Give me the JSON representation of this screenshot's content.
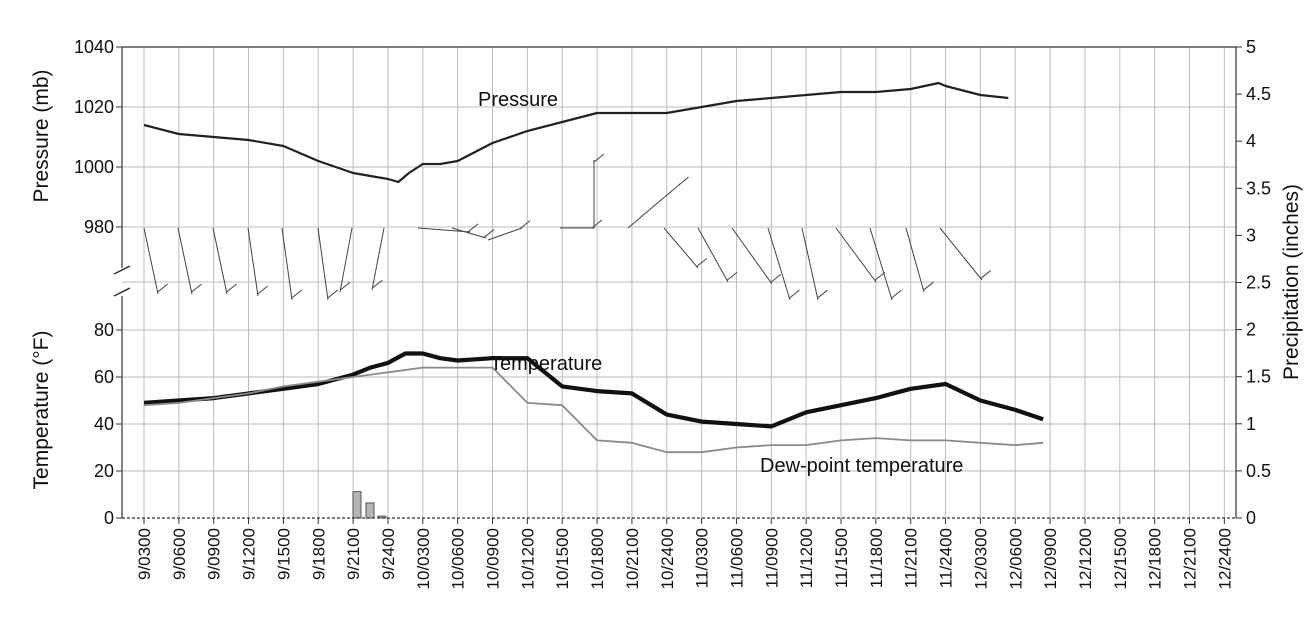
{
  "chart_data": {
    "type": "line",
    "x_categories": [
      "9/0300",
      "9/0600",
      "9/0900",
      "9/1200",
      "9/1500",
      "9/1800",
      "9/2100",
      "9/2400",
      "10/0300",
      "10/0600",
      "10/0900",
      "10/1200",
      "10/1500",
      "10/1800",
      "10/2100",
      "10/2400",
      "11/0300",
      "11/0600",
      "11/0900",
      "11/1200",
      "11/1500",
      "11/1800",
      "11/2100",
      "11/2400",
      "12/0300",
      "12/0600",
      "12/0900",
      "12/1200",
      "12/1500",
      "12/1800",
      "12/2100",
      "12/2400"
    ],
    "pressure_axis": {
      "title": "Pressure (mb)",
      "ticks": [
        "1040",
        "1020",
        "1000",
        "980"
      ],
      "range": [
        966,
        1040
      ]
    },
    "temperature_axis": {
      "title": "Temperature (°F)",
      "ticks": [
        "80",
        "60",
        "40",
        "20",
        "0"
      ],
      "range": [
        0,
        90
      ]
    },
    "precipitation_axis": {
      "title": "Precipitation (inches)",
      "ticks": [
        "5",
        "4.5",
        "4",
        "3.5",
        "3",
        "2.5",
        "2",
        "1.5",
        "1",
        "0.5",
        "0"
      ],
      "range": [
        0,
        5
      ]
    },
    "series": [
      {
        "name": "Pressure",
        "axis": "pressure",
        "x": [
          0,
          1,
          2,
          3,
          4,
          5,
          6,
          6.5,
          7,
          7.3,
          7.6,
          8,
          8.5,
          9,
          10,
          11,
          12,
          13,
          14,
          15,
          16,
          17,
          18,
          19,
          20,
          21,
          22,
          22.8,
          23,
          24,
          24.8
        ],
        "values": [
          1014,
          1011,
          1010,
          1009,
          1007,
          1002,
          998,
          997,
          996,
          995,
          998,
          1001,
          1001,
          1002,
          1008,
          1012,
          1015,
          1018,
          1018,
          1018,
          1020,
          1022,
          1023,
          1024,
          1025,
          1025,
          1026,
          1028,
          1027,
          1024,
          1023
        ]
      },
      {
        "name": "Temperature",
        "axis": "temperature",
        "x": [
          0,
          1,
          2,
          3,
          4,
          5,
          6,
          6.5,
          7,
          7.5,
          8,
          8.5,
          9,
          10,
          11,
          12,
          13,
          14,
          15,
          16,
          17,
          18,
          19,
          20,
          21,
          22,
          23,
          24,
          25,
          25.8
        ],
        "values": [
          49,
          50,
          51,
          53,
          55,
          57,
          61,
          64,
          66,
          70,
          70,
          68,
          67,
          68,
          68,
          56,
          54,
          53,
          44,
          41,
          40,
          39,
          45,
          48,
          51,
          55,
          57,
          50,
          46,
          42
        ]
      },
      {
        "name": "Dew-point temperature",
        "axis": "temperature",
        "x": [
          0,
          1,
          2,
          3,
          4,
          5,
          6,
          7,
          8,
          9,
          10,
          11,
          12,
          13,
          14,
          15,
          16,
          17,
          18,
          19,
          20,
          21,
          22,
          23,
          24,
          25,
          25.8
        ],
        "values": [
          48,
          49,
          51,
          53,
          56,
          58,
          60,
          62,
          64,
          64,
          64,
          49,
          48,
          33,
          32,
          28,
          28,
          30,
          31,
          31,
          33,
          34,
          33,
          33,
          32,
          31,
          32
        ]
      }
    ],
    "precipitation_bars": [
      {
        "x": "9/2100",
        "value": 0.28
      },
      {
        "x": "9/2200",
        "value": 0.16
      },
      {
        "x": "9/2300",
        "value": 0.02
      }
    ],
    "grid": true
  }
}
